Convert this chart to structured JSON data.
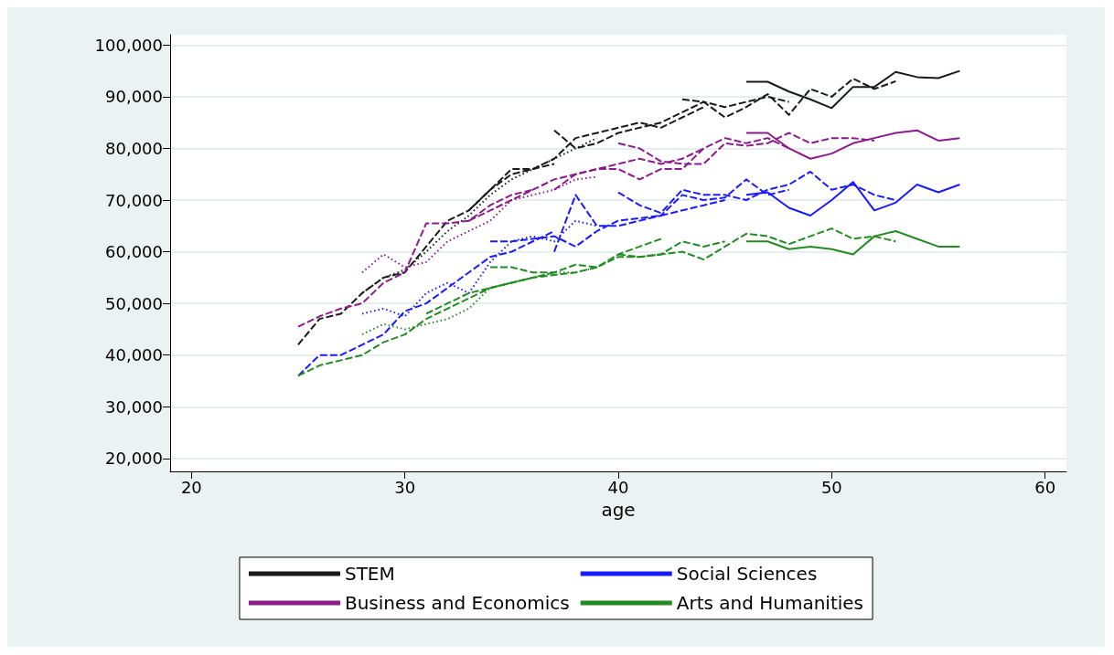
{
  "chart_data": {
    "type": "line",
    "xlabel": "age",
    "xlim": [
      19,
      61
    ],
    "xticks": [
      20,
      30,
      40,
      50,
      60
    ],
    "ylim": [
      17500,
      102000
    ],
    "yticks": [
      {
        "value": 20000,
        "label": "20,000"
      },
      {
        "value": 30000,
        "label": "30,000"
      },
      {
        "value": 40000,
        "label": "40,000"
      },
      {
        "value": 50000,
        "label": "50,000"
      },
      {
        "value": 60000,
        "label": "60,000"
      },
      {
        "value": 70000,
        "label": "70,000"
      },
      {
        "value": 80000,
        "label": "80,000"
      },
      {
        "value": 90000,
        "label": "90,000"
      },
      {
        "value": 100000,
        "label": "100,000"
      }
    ],
    "grid": "y",
    "legend": "bottom",
    "marker": "none",
    "series": [
      {
        "name": "STEM",
        "color": "#1a1a1a",
        "line_style": "solid",
        "x": [
          46,
          47,
          48,
          49,
          50,
          51,
          52,
          53,
          54,
          55,
          56
        ],
        "values": [
          92900,
          92900,
          91000,
          89500,
          87800,
          91900,
          91900,
          94800,
          93800,
          93600,
          95000
        ]
      },
      {
        "color": "#1a1a1a",
        "line_style": "dashed",
        "x": [
          25,
          26,
          27,
          28,
          29,
          30,
          31,
          32,
          33,
          34,
          35,
          36,
          37
        ],
        "values": [
          42000,
          47000,
          48000,
          52000,
          55000,
          56000,
          61000,
          66000,
          68000,
          72000,
          75000,
          76000,
          77000
        ]
      },
      {
        "color": "#1a1a1a",
        "line_style": "dotted",
        "x": [
          28,
          29,
          30,
          31,
          32,
          33,
          34,
          35,
          36,
          37,
          38,
          39
        ],
        "values": [
          52000,
          55000,
          56500,
          60000,
          64000,
          67000,
          71000,
          74000,
          76000,
          78000,
          80000,
          82000
        ]
      },
      {
        "color": "#1a1a1a",
        "line_style": "dashed",
        "x": [
          33,
          34,
          35,
          36,
          37,
          38,
          39,
          40,
          41,
          42,
          43,
          44
        ],
        "values": [
          68000,
          72000,
          76000,
          76000,
          78000,
          82000,
          83000,
          84000,
          85000,
          84000,
          86000,
          88000
        ]
      },
      {
        "color": "#1a1a1a",
        "line_style": "dashed",
        "x": [
          37,
          38,
          39,
          40,
          41,
          42,
          43,
          44,
          45,
          46,
          47,
          48
        ],
        "values": [
          83500,
          80000,
          81000,
          83000,
          84000,
          85000,
          87000,
          89000,
          88000,
          89000,
          90000,
          89000
        ]
      },
      {
        "color": "#1a1a1a",
        "line_style": "dashed",
        "x": [
          43,
          44,
          45,
          46,
          47,
          48,
          49,
          50,
          51,
          52,
          53
        ],
        "values": [
          89500,
          89000,
          86000,
          88000,
          90500,
          86500,
          91500,
          90000,
          93500,
          91500,
          93000
        ]
      },
      {
        "name": "Business and Economics",
        "color": "#8b1a8b",
        "line_style": "solid",
        "x": [
          46,
          47,
          48,
          49,
          50,
          51,
          52,
          53,
          54,
          55,
          56
        ],
        "values": [
          83000,
          83000,
          80000,
          78000,
          79000,
          81000,
          82000,
          83000,
          83500,
          81500,
          82000
        ]
      },
      {
        "color": "#8b1a8b",
        "line_style": "dashed",
        "x": [
          25,
          26,
          27,
          28,
          29,
          30,
          31,
          32,
          33,
          34,
          35,
          36
        ],
        "values": [
          45500,
          47500,
          49000,
          50000,
          54000,
          56000,
          65500,
          65500,
          66000,
          69000,
          71000,
          72000
        ]
      },
      {
        "color": "#8b1a8b",
        "line_style": "dotted",
        "x": [
          28,
          29,
          30,
          31,
          32,
          33,
          34,
          35,
          36,
          37,
          38,
          39
        ],
        "values": [
          56000,
          59500,
          57000,
          58000,
          62000,
          64000,
          66000,
          70000,
          71000,
          72000,
          74000,
          74500
        ]
      },
      {
        "color": "#8b1a8b",
        "line_style": "dashed",
        "x": [
          33,
          34,
          35,
          36,
          37,
          38,
          39,
          40,
          41,
          42,
          43,
          44
        ],
        "values": [
          66000,
          68000,
          70000,
          72000,
          74000,
          75000,
          76000,
          77000,
          78000,
          77000,
          78000,
          80000
        ]
      },
      {
        "color": "#8b1a8b",
        "line_style": "dashed",
        "x": [
          37,
          38,
          39,
          40,
          41,
          42,
          43,
          44,
          45,
          46,
          47,
          48
        ],
        "values": [
          72000,
          75000,
          76000,
          76000,
          74000,
          76000,
          76000,
          80000,
          82000,
          81000,
          82000,
          80000
        ]
      },
      {
        "color": "#8b1a8b",
        "line_style": "dashed",
        "x": [
          40,
          41,
          42,
          43,
          44,
          45,
          46,
          47,
          48,
          49,
          50,
          51,
          52
        ],
        "values": [
          81000,
          80000,
          77500,
          77000,
          77000,
          81000,
          80500,
          81000,
          83000,
          81000,
          82000,
          82000,
          81500
        ]
      },
      {
        "name": "Social Sciences",
        "color": "#1a1aff",
        "line_style": "solid",
        "x": [
          46,
          47,
          48,
          49,
          50,
          51,
          52,
          53,
          54,
          55,
          56
        ],
        "values": [
          71000,
          71500,
          68500,
          67000,
          70000,
          73500,
          68000,
          69500,
          73000,
          71500,
          73000
        ]
      },
      {
        "color": "#1a1aff",
        "line_style": "dashed",
        "x": [
          25,
          26,
          27,
          28,
          29,
          30,
          31,
          32,
          33,
          34,
          35,
          36,
          37
        ],
        "values": [
          36000,
          40000,
          40000,
          42000,
          44000,
          48500,
          50000,
          53000,
          56000,
          59000,
          60000,
          62000,
          64000
        ]
      },
      {
        "color": "#1a1aff",
        "line_style": "dotted",
        "x": [
          28,
          29,
          30,
          31,
          32,
          33,
          34,
          35,
          36,
          37,
          38,
          39
        ],
        "values": [
          48000,
          49000,
          47500,
          52000,
          54000,
          52000,
          58000,
          62000,
          63000,
          62000,
          66000,
          65000
        ]
      },
      {
        "color": "#1a1aff",
        "line_style": "dashed",
        "x": [
          34,
          35,
          36,
          37,
          38,
          39,
          40,
          41,
          42,
          43,
          44,
          45
        ],
        "values": [
          62000,
          62000,
          62500,
          63000,
          61000,
          64000,
          66000,
          66500,
          67000,
          68000,
          69000,
          70000
        ]
      },
      {
        "color": "#1a1aff",
        "line_style": "dashed",
        "x": [
          37,
          38,
          39,
          40,
          41,
          42,
          43,
          44,
          45,
          46,
          47,
          48
        ],
        "values": [
          60000,
          71000,
          65000,
          65000,
          66000,
          67000,
          71000,
          70000,
          70500,
          74000,
          71000,
          72000
        ]
      },
      {
        "color": "#1a1aff",
        "line_style": "dashed",
        "x": [
          40,
          41,
          42,
          43,
          44,
          45,
          46,
          47,
          48,
          49,
          50,
          51,
          52,
          53
        ],
        "values": [
          71500,
          69000,
          67500,
          72000,
          71000,
          71000,
          70000,
          72000,
          73000,
          75500,
          72000,
          73000,
          71000,
          70000
        ]
      },
      {
        "name": "Arts and Humanities",
        "color": "#228b22",
        "line_style": "solid",
        "x": [
          46,
          47,
          48,
          49,
          50,
          51,
          52,
          53,
          54,
          55,
          56
        ],
        "values": [
          62000,
          62000,
          60500,
          61000,
          60500,
          59500,
          63000,
          64000,
          62500,
          61000,
          61000
        ]
      },
      {
        "color": "#228b22",
        "line_style": "dashed",
        "x": [
          25,
          26,
          27,
          28,
          29,
          30,
          31,
          32,
          33,
          34,
          35,
          36,
          37
        ],
        "values": [
          36000,
          38000,
          39000,
          40000,
          42500,
          44000,
          47000,
          49000,
          51000,
          53000,
          54000,
          55000,
          56000
        ]
      },
      {
        "color": "#228b22",
        "line_style": "dotted",
        "x": [
          28,
          29,
          30,
          31,
          32,
          33,
          34,
          35,
          36,
          37,
          38,
          39
        ],
        "values": [
          44000,
          46000,
          45000,
          46000,
          47000,
          49000,
          53000,
          54000,
          55000,
          56000,
          56000,
          57000
        ]
      },
      {
        "color": "#228b22",
        "line_style": "dashed",
        "x": [
          34,
          35,
          36,
          37,
          38,
          39,
          40,
          41,
          42,
          43,
          44,
          45
        ],
        "values": [
          57000,
          57000,
          56000,
          56000,
          57500,
          57000,
          59000,
          59000,
          59500,
          62000,
          61000,
          62000
        ]
      },
      {
        "color": "#228b22",
        "line_style": "dashed",
        "x": [
          31,
          32,
          33,
          34,
          35,
          36,
          37,
          38,
          39,
          40,
          41,
          42
        ],
        "values": [
          48000,
          50000,
          52000,
          53000,
          54000,
          55000,
          55500,
          56000,
          57000,
          59500,
          61000,
          62500
        ]
      },
      {
        "color": "#228b22",
        "line_style": "dashed",
        "x": [
          40,
          41,
          42,
          43,
          44,
          45,
          46,
          47,
          48,
          49,
          50,
          51,
          52,
          53
        ],
        "values": [
          59500,
          59000,
          59500,
          60000,
          58500,
          61000,
          63500,
          63000,
          61500,
          63000,
          64500,
          62500,
          63000,
          62000
        ]
      }
    ]
  }
}
